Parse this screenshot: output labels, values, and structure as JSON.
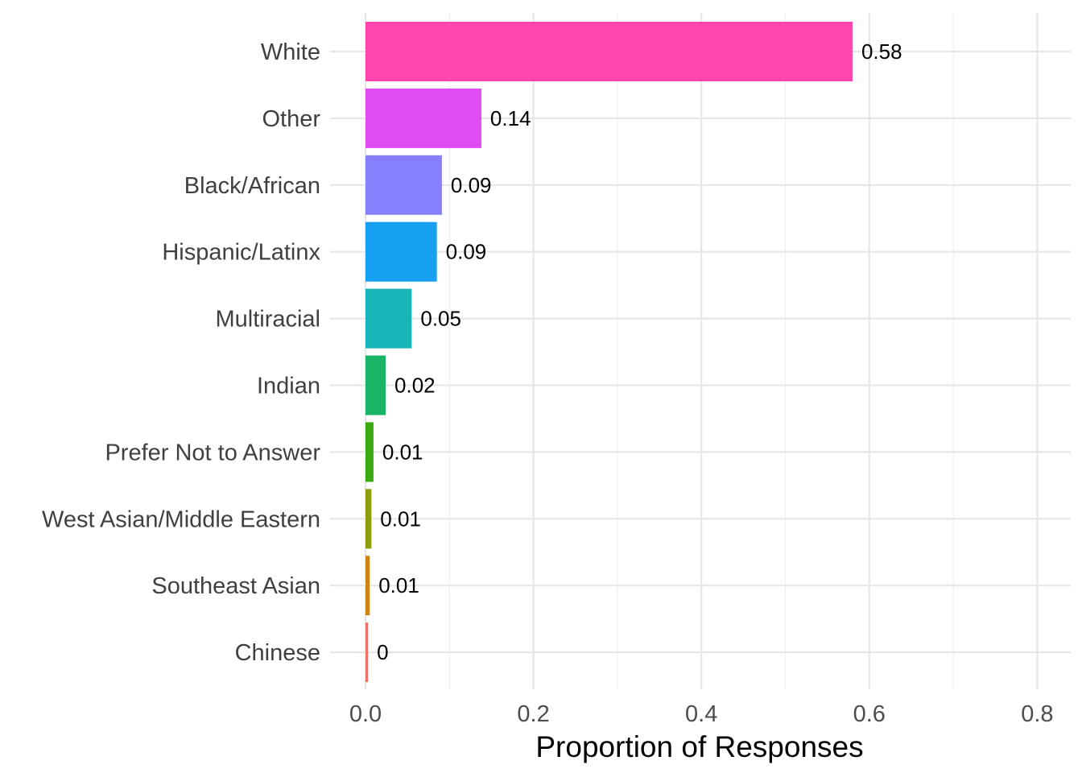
{
  "chart_data": {
    "type": "bar",
    "orientation": "horizontal",
    "categories": [
      "White",
      "Other",
      "Black/African",
      "Hispanic/Latinx",
      "Multiracial",
      "Indian",
      "Prefer Not to Answer",
      "West Asian/Middle Eastern",
      "Southeast Asian",
      "Chinese"
    ],
    "values": [
      0.58,
      0.138,
      0.091,
      0.085,
      0.055,
      0.024,
      0.0095,
      0.007,
      0.005,
      0.003
    ],
    "data_labels": [
      "0.58",
      "0.14",
      "0.09",
      "0.09",
      "0.05",
      "0.02",
      "0.01",
      "0.01",
      "0.01",
      "0"
    ],
    "colors": [
      "#FF46AE",
      "#E04BF2",
      "#8680FF",
      "#179FF2",
      "#18B4B7",
      "#1AB467",
      "#38AA0F",
      "#8E9B0B",
      "#CE8410",
      "#EE6F63"
    ],
    "xlabel": "Proportion of Responses",
    "ylabel": "",
    "xlim": [
      0,
      0.84
    ],
    "x_ticks": [
      0.0,
      0.2,
      0.4,
      0.6,
      0.8
    ],
    "x_tick_labels": [
      "0.0",
      "0.2",
      "0.4",
      "0.6",
      "0.8"
    ],
    "grid": true,
    "legend": "none"
  }
}
